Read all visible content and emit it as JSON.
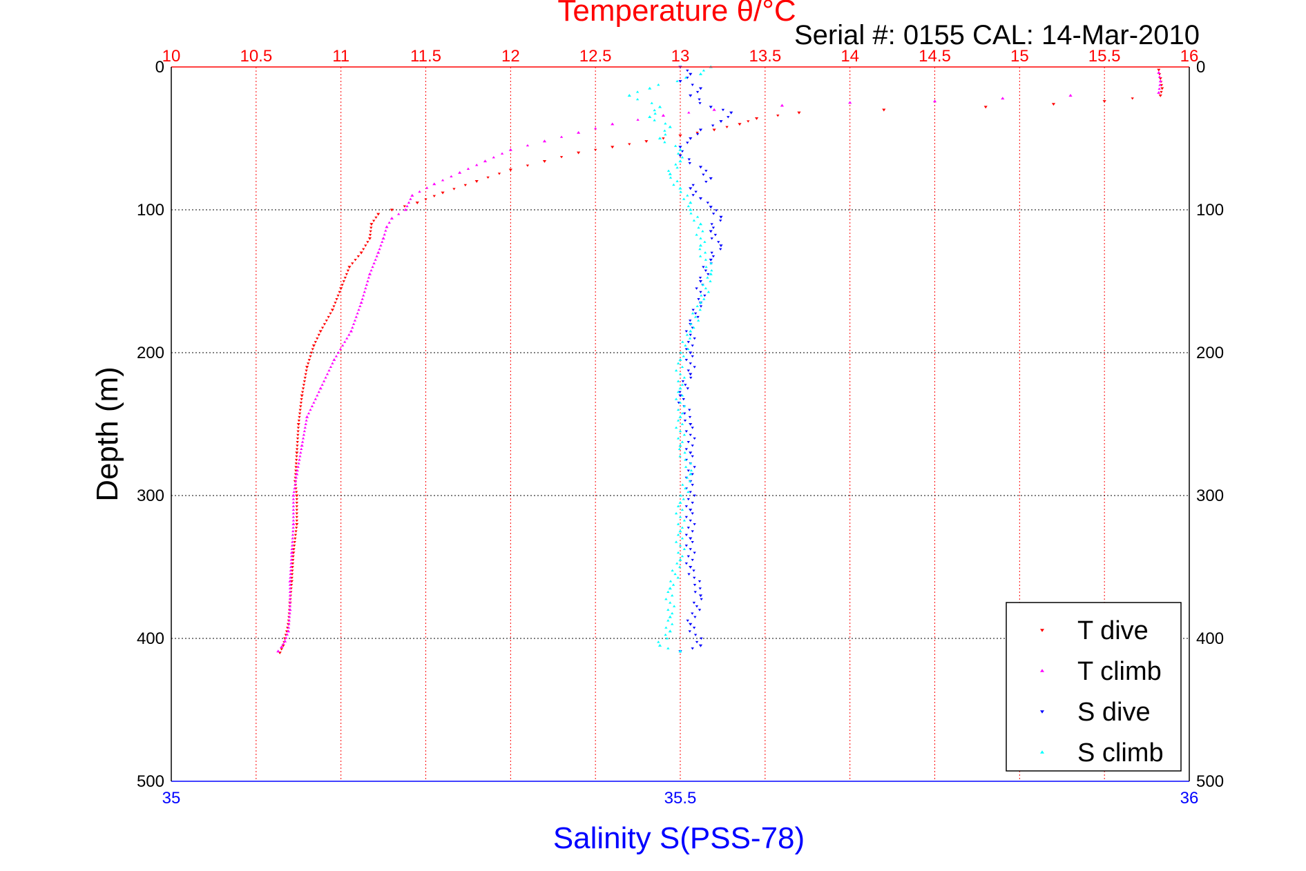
{
  "chart_data": {
    "type": "scatter",
    "title": "Temperature θ/°C",
    "subtitle": "Serial #: 0155  CAL: 14-Mar-2010",
    "xlabel": "Salinity S(PSS-78)",
    "ylabel": "Depth (m)",
    "temperature_axis": {
      "range": [
        10,
        16
      ],
      "ticks": [
        "10",
        "10.5",
        "11",
        "11.5",
        "12",
        "12.5",
        "13",
        "13.5",
        "14",
        "14.5",
        "15",
        "15.5",
        "16"
      ],
      "color": "#ff0000"
    },
    "salinity_axis": {
      "range": [
        35,
        36
      ],
      "ticks": [
        "35",
        "35.5",
        "36"
      ],
      "color": "#0000ff"
    },
    "depth_axis": {
      "range": [
        0,
        500
      ],
      "reversed": true,
      "ticks": [
        "0",
        "100",
        "200",
        "300",
        "400",
        "500"
      ]
    },
    "grid": true,
    "legend_position": "bottom-right",
    "series": [
      {
        "name": "T dive",
        "axis": "temperature",
        "color": "#ff0000",
        "marker": "triangle-down",
        "points": [
          [
            15.82,
            2
          ],
          [
            15.83,
            8
          ],
          [
            15.84,
            15
          ],
          [
            15.83,
            20
          ],
          [
            15.5,
            24
          ],
          [
            15.2,
            26
          ],
          [
            14.8,
            28
          ],
          [
            14.2,
            30
          ],
          [
            13.7,
            32
          ],
          [
            13.45,
            36
          ],
          [
            13.35,
            40
          ],
          [
            13.2,
            44
          ],
          [
            13.0,
            48
          ],
          [
            12.8,
            52
          ],
          [
            12.6,
            56
          ],
          [
            12.4,
            60
          ],
          [
            12.2,
            66
          ],
          [
            12.0,
            72
          ],
          [
            11.8,
            80
          ],
          [
            11.6,
            88
          ],
          [
            11.45,
            95
          ],
          [
            11.3,
            100
          ],
          [
            11.22,
            103
          ],
          [
            11.18,
            110
          ],
          [
            11.17,
            120
          ],
          [
            11.12,
            130
          ],
          [
            11.05,
            140
          ],
          [
            11.0,
            155
          ],
          [
            10.95,
            170
          ],
          [
            10.88,
            185
          ],
          [
            10.84,
            195
          ],
          [
            10.8,
            210
          ],
          [
            10.77,
            230
          ],
          [
            10.75,
            250
          ],
          [
            10.74,
            270
          ],
          [
            10.73,
            290
          ],
          [
            10.74,
            300
          ],
          [
            10.74,
            320
          ],
          [
            10.72,
            340
          ],
          [
            10.71,
            360
          ],
          [
            10.7,
            375
          ],
          [
            10.69,
            390
          ],
          [
            10.67,
            400
          ],
          [
            10.66,
            405
          ],
          [
            10.64,
            410
          ]
        ]
      },
      {
        "name": "T climb",
        "axis": "temperature",
        "color": "#ff00ff",
        "marker": "triangle-up",
        "points": [
          [
            15.82,
            4
          ],
          [
            15.83,
            10
          ],
          [
            15.82,
            18
          ],
          [
            15.3,
            20
          ],
          [
            14.9,
            22
          ],
          [
            14.5,
            24
          ],
          [
            14.0,
            25
          ],
          [
            13.6,
            27
          ],
          [
            13.2,
            30
          ],
          [
            12.9,
            34
          ],
          [
            12.6,
            40
          ],
          [
            12.4,
            46
          ],
          [
            12.2,
            52
          ],
          [
            12.0,
            58
          ],
          [
            11.85,
            66
          ],
          [
            11.7,
            74
          ],
          [
            11.55,
            82
          ],
          [
            11.42,
            90
          ],
          [
            11.38,
            100
          ],
          [
            11.3,
            106
          ],
          [
            11.27,
            112
          ],
          [
            11.25,
            120
          ],
          [
            11.22,
            130
          ],
          [
            11.17,
            145
          ],
          [
            11.12,
            165
          ],
          [
            11.06,
            185
          ],
          [
            10.96,
            205
          ],
          [
            10.88,
            225
          ],
          [
            10.8,
            245
          ],
          [
            10.77,
            265
          ],
          [
            10.74,
            285
          ],
          [
            10.72,
            300
          ],
          [
            10.72,
            320
          ],
          [
            10.71,
            340
          ],
          [
            10.7,
            360
          ],
          [
            10.7,
            380
          ],
          [
            10.69,
            395
          ],
          [
            10.67,
            402
          ],
          [
            10.65,
            406
          ],
          [
            10.63,
            409
          ]
        ]
      },
      {
        "name": "S dive",
        "axis": "salinity",
        "color": "#0000ff",
        "marker": "triangle-down",
        "points": [
          [
            35.5,
            0
          ],
          [
            35.51,
            5
          ],
          [
            35.5,
            10
          ],
          [
            35.52,
            15
          ],
          [
            35.51,
            20
          ],
          [
            35.53,
            28
          ],
          [
            35.55,
            32
          ],
          [
            35.54,
            38
          ],
          [
            35.52,
            44
          ],
          [
            35.51,
            50
          ],
          [
            35.5,
            56
          ],
          [
            35.5,
            62
          ],
          [
            35.52,
            70
          ],
          [
            35.53,
            78
          ],
          [
            35.51,
            85
          ],
          [
            35.52,
            92
          ],
          [
            35.53,
            98
          ],
          [
            35.54,
            105
          ],
          [
            35.53,
            115
          ],
          [
            35.54,
            125
          ],
          [
            35.53,
            135
          ],
          [
            35.52,
            150
          ],
          [
            35.52,
            165
          ],
          [
            35.51,
            180
          ],
          [
            35.51,
            200
          ],
          [
            35.51,
            215
          ],
          [
            35.5,
            230
          ],
          [
            35.51,
            250
          ],
          [
            35.51,
            270
          ],
          [
            35.51,
            290
          ],
          [
            35.51,
            310
          ],
          [
            35.51,
            330
          ],
          [
            35.51,
            350
          ],
          [
            35.52,
            370
          ],
          [
            35.51,
            390
          ],
          [
            35.52,
            405
          ],
          [
            35.5,
            409
          ]
        ]
      },
      {
        "name": "S climb",
        "axis": "salinity",
        "color": "#00ffff",
        "marker": "triangle-up",
        "points": [
          [
            35.53,
            0
          ],
          [
            35.52,
            5
          ],
          [
            35.47,
            15
          ],
          [
            35.45,
            20
          ],
          [
            35.48,
            28
          ],
          [
            35.47,
            35
          ],
          [
            35.49,
            42
          ],
          [
            35.48,
            50
          ],
          [
            35.5,
            58
          ],
          [
            35.5,
            66
          ],
          [
            35.49,
            75
          ],
          [
            35.5,
            85
          ],
          [
            35.51,
            95
          ],
          [
            35.51,
            100
          ],
          [
            35.52,
            110
          ],
          [
            35.52,
            125
          ],
          [
            35.53,
            145
          ],
          [
            35.52,
            165
          ],
          [
            35.51,
            185
          ],
          [
            35.5,
            205
          ],
          [
            35.5,
            225
          ],
          [
            35.5,
            245
          ],
          [
            35.5,
            265
          ],
          [
            35.51,
            285
          ],
          [
            35.5,
            305
          ],
          [
            35.5,
            325
          ],
          [
            35.5,
            345
          ],
          [
            35.49,
            365
          ],
          [
            35.49,
            385
          ],
          [
            35.49,
            395
          ],
          [
            35.48,
            405
          ],
          [
            35.5,
            409
          ]
        ]
      }
    ]
  }
}
